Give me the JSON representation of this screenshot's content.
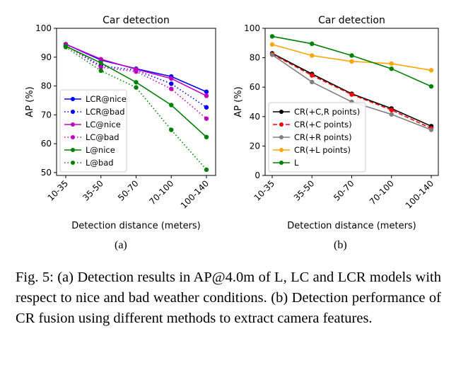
{
  "chart_data": [
    {
      "type": "line",
      "title": "Car detection",
      "xlabel": "Detection distance (meters)",
      "ylabel": "AP (%)",
      "categories": [
        "10-35",
        "35-50",
        "50-70",
        "70-100",
        "100-140"
      ],
      "ylim": [
        49,
        100
      ],
      "yticks": [
        50,
        60,
        70,
        80,
        90,
        100
      ],
      "legend": "lower-left",
      "grid": false,
      "series": [
        {
          "name": "LCR@nice",
          "values": [
            94.5,
            89.0,
            86.0,
            83.3,
            78.0
          ],
          "color": "#0000ff",
          "style": "solid"
        },
        {
          "name": "LCR@bad",
          "values": [
            94.0,
            87.0,
            85.5,
            80.8,
            72.6
          ],
          "color": "#0000ff",
          "style": "dotted"
        },
        {
          "name": "LC@nice",
          "values": [
            94.5,
            89.3,
            85.8,
            82.6,
            76.6
          ],
          "color": "#bf00bf",
          "style": "solid"
        },
        {
          "name": "LC@bad",
          "values": [
            94.0,
            86.5,
            85.0,
            79.0,
            68.7
          ],
          "color": "#bf00bf",
          "style": "dotted"
        },
        {
          "name": "L@nice",
          "values": [
            93.8,
            88.0,
            81.3,
            73.4,
            62.3
          ],
          "color": "#008000",
          "style": "solid"
        },
        {
          "name": "L@bad",
          "values": [
            93.5,
            85.3,
            79.5,
            64.8,
            51.0
          ],
          "color": "#008000",
          "style": "dotted"
        }
      ]
    },
    {
      "type": "line",
      "title": "Car detection",
      "xlabel": "Detection distance (meters)",
      "ylabel": "AP (%)",
      "categories": [
        "10-35",
        "35-50",
        "50-70",
        "70-100",
        "100-140"
      ],
      "ylim": [
        0,
        100
      ],
      "yticks": [
        0,
        20,
        40,
        60,
        80,
        100
      ],
      "legend": "lower-left",
      "grid": false,
      "series": [
        {
          "name": "CR(+C,R points)",
          "values": [
            83.0,
            69.0,
            55.5,
            45.5,
            33.5
          ],
          "color": "#000000",
          "style": "solid"
        },
        {
          "name": "CR(+C points)",
          "values": [
            82.5,
            68.0,
            55.0,
            44.5,
            32.0
          ],
          "color": "#ff0000",
          "style": "dashed"
        },
        {
          "name": "CR(+R points)",
          "values": [
            82.0,
            63.5,
            50.0,
            41.5,
            31.0
          ],
          "color": "#808080",
          "style": "solid"
        },
        {
          "name": "CR(+L points)",
          "values": [
            89.0,
            81.5,
            77.5,
            76.0,
            71.5
          ],
          "color": "#ffa500",
          "style": "solid"
        },
        {
          "name": "L",
          "values": [
            94.5,
            89.5,
            81.5,
            72.5,
            60.5
          ],
          "color": "#008000",
          "style": "solid"
        }
      ]
    }
  ],
  "subfigures": {
    "a": "(a)",
    "b": "(b)"
  },
  "caption": "Fig. 5: (a) Detection results in AP@4.0m of L, LC and LCR models with respect to nice and bad weather conditions. (b) Detection performance of CR fusion using different methods to extract camera features."
}
